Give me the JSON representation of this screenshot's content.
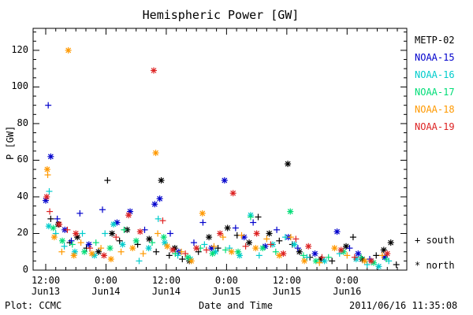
{
  "chart_data": {
    "type": "scatter",
    "title": "Hemispheric Power [GW]",
    "xlabel": "Date and Time",
    "ylabel": "P [GW]",
    "ylim": [
      0,
      132
    ],
    "yticks": [
      0,
      20,
      40,
      60,
      80,
      100,
      120
    ],
    "x_unit": "hours since 2011-06-13 12:00 UT",
    "xlim": [
      0,
      70
    ],
    "xticks": [
      {
        "x": 0,
        "label": "12:00",
        "date": "Jun13"
      },
      {
        "x": 12,
        "label": "0:00",
        "date": "Jun14"
      },
      {
        "x": 24,
        "label": "12:00",
        "date": "Jun14"
      },
      {
        "x": 36,
        "label": "0:00",
        "date": "Jun15"
      },
      {
        "x": 48,
        "label": "12:00",
        "date": "Jun15"
      },
      {
        "x": 60,
        "label": "0:00",
        "date": "Jun16"
      }
    ],
    "legend_position": "right",
    "series": [
      {
        "name": "METP-02",
        "color": "#000000",
        "points": [
          {
            "x": 1.0,
            "y": 28,
            "m": "+"
          },
          {
            "x": 2.5,
            "y": 25,
            "m": "*"
          },
          {
            "x": 4.8,
            "y": 15,
            "m": "+"
          },
          {
            "x": 6.3,
            "y": 18,
            "m": "*"
          },
          {
            "x": 8.1,
            "y": 12,
            "m": "+"
          },
          {
            "x": 10.5,
            "y": 10,
            "m": "*"
          },
          {
            "x": 12.3,
            "y": 49,
            "m": "+"
          },
          {
            "x": 13.2,
            "y": 20,
            "m": "*"
          },
          {
            "x": 14.7,
            "y": 16,
            "m": "+"
          },
          {
            "x": 16.2,
            "y": 22,
            "m": "*"
          },
          {
            "x": 18.3,
            "y": 14,
            "m": "+"
          },
          {
            "x": 20.6,
            "y": 17,
            "m": "*"
          },
          {
            "x": 22.0,
            "y": 10,
            "m": "+"
          },
          {
            "x": 23.0,
            "y": 49,
            "m": "*"
          },
          {
            "x": 24.6,
            "y": 8,
            "m": "+"
          },
          {
            "x": 25.7,
            "y": 12,
            "m": "*"
          },
          {
            "x": 27.2,
            "y": 6,
            "m": "+"
          },
          {
            "x": 28.6,
            "y": 5,
            "m": "*"
          },
          {
            "x": 30.4,
            "y": 10,
            "m": "+"
          },
          {
            "x": 32.5,
            "y": 18,
            "m": "*"
          },
          {
            "x": 34.3,
            "y": 12,
            "m": "+"
          },
          {
            "x": 36.2,
            "y": 23,
            "m": "*"
          },
          {
            "x": 38.1,
            "y": 19,
            "m": "+"
          },
          {
            "x": 40.5,
            "y": 15,
            "m": "*"
          },
          {
            "x": 42.3,
            "y": 29,
            "m": "+"
          },
          {
            "x": 44.5,
            "y": 20,
            "m": "*"
          },
          {
            "x": 46.5,
            "y": 16,
            "m": "+"
          },
          {
            "x": 48.2,
            "y": 58,
            "m": "*"
          },
          {
            "x": 49.1,
            "y": 14,
            "m": "+"
          },
          {
            "x": 50.5,
            "y": 10,
            "m": "*"
          },
          {
            "x": 52.6,
            "y": 7,
            "m": "+"
          },
          {
            "x": 54.8,
            "y": 6,
            "m": "*"
          },
          {
            "x": 57.0,
            "y": 5,
            "m": "+"
          },
          {
            "x": 59.8,
            "y": 13,
            "m": "*"
          },
          {
            "x": 61.2,
            "y": 18,
            "m": "+"
          },
          {
            "x": 63.0,
            "y": 6,
            "m": "*"
          },
          {
            "x": 65.8,
            "y": 8,
            "m": "+"
          },
          {
            "x": 67.3,
            "y": 11,
            "m": "*"
          },
          {
            "x": 68.7,
            "y": 15,
            "m": "*"
          },
          {
            "x": 69.8,
            "y": 3,
            "m": "+"
          }
        ]
      },
      {
        "name": "NOAA-15",
        "color": "#0000cc",
        "points": [
          {
            "x": 0.0,
            "y": 38,
            "m": "*"
          },
          {
            "x": 0.5,
            "y": 90,
            "m": "+"
          },
          {
            "x": 1.0,
            "y": 62,
            "m": "*"
          },
          {
            "x": 2.3,
            "y": 28,
            "m": "+"
          },
          {
            "x": 3.8,
            "y": 22,
            "m": "*"
          },
          {
            "x": 5.1,
            "y": 16,
            "m": "+"
          },
          {
            "x": 6.8,
            "y": 31,
            "m": "+"
          },
          {
            "x": 8.6,
            "y": 14,
            "m": "*"
          },
          {
            "x": 11.3,
            "y": 33,
            "m": "+"
          },
          {
            "x": 14.2,
            "y": 26,
            "m": "*"
          },
          {
            "x": 16.8,
            "y": 32,
            "m": "*"
          },
          {
            "x": 19.7,
            "y": 22,
            "m": "+"
          },
          {
            "x": 21.7,
            "y": 36,
            "m": "*"
          },
          {
            "x": 22.7,
            "y": 39,
            "m": "*"
          },
          {
            "x": 24.8,
            "y": 20,
            "m": "+"
          },
          {
            "x": 26.5,
            "y": 10,
            "m": "*"
          },
          {
            "x": 29.5,
            "y": 15,
            "m": "+"
          },
          {
            "x": 31.3,
            "y": 26,
            "m": "+"
          },
          {
            "x": 33.0,
            "y": 12,
            "m": "*"
          },
          {
            "x": 35.6,
            "y": 49,
            "m": "*"
          },
          {
            "x": 37.8,
            "y": 23,
            "m": "+"
          },
          {
            "x": 39.5,
            "y": 18,
            "m": "*"
          },
          {
            "x": 41.3,
            "y": 26,
            "m": "+"
          },
          {
            "x": 43.7,
            "y": 13,
            "m": "*"
          },
          {
            "x": 46.0,
            "y": 22,
            "m": "+"
          },
          {
            "x": 48.3,
            "y": 18,
            "m": "*"
          },
          {
            "x": 50.2,
            "y": 12,
            "m": "+"
          },
          {
            "x": 53.6,
            "y": 9,
            "m": "*"
          },
          {
            "x": 58.0,
            "y": 21,
            "m": "*"
          },
          {
            "x": 60.5,
            "y": 12,
            "m": "+"
          },
          {
            "x": 62.2,
            "y": 9,
            "m": "*"
          },
          {
            "x": 64.5,
            "y": 6,
            "m": "+"
          },
          {
            "x": 67.5,
            "y": 7,
            "m": "*"
          }
        ]
      },
      {
        "name": "NOAA-16",
        "color": "#00cccc",
        "points": [
          {
            "x": 0.6,
            "y": 24,
            "m": "*"
          },
          {
            "x": 0.7,
            "y": 43,
            "m": "+"
          },
          {
            "x": 2.0,
            "y": 20,
            "m": "+"
          },
          {
            "x": 3.7,
            "y": 13,
            "m": "+"
          },
          {
            "x": 5.8,
            "y": 10,
            "m": "*"
          },
          {
            "x": 7.3,
            "y": 20,
            "m": "+"
          },
          {
            "x": 9.7,
            "y": 8,
            "m": "*"
          },
          {
            "x": 11.8,
            "y": 20,
            "m": "+"
          },
          {
            "x": 13.5,
            "y": 25,
            "m": "*"
          },
          {
            "x": 15.3,
            "y": 14,
            "m": "*"
          },
          {
            "x": 18.6,
            "y": 5,
            "m": "+"
          },
          {
            "x": 20.5,
            "y": 12,
            "m": "*"
          },
          {
            "x": 22.4,
            "y": 28,
            "m": "+"
          },
          {
            "x": 23.7,
            "y": 15,
            "m": "*"
          },
          {
            "x": 26.3,
            "y": 8,
            "m": "+"
          },
          {
            "x": 28.8,
            "y": 6,
            "m": "*"
          },
          {
            "x": 31.6,
            "y": 14,
            "m": "+"
          },
          {
            "x": 33.8,
            "y": 10,
            "m": "*"
          },
          {
            "x": 36.6,
            "y": 12,
            "m": "+"
          },
          {
            "x": 38.6,
            "y": 8,
            "m": "*"
          },
          {
            "x": 40.8,
            "y": 30,
            "m": "*"
          },
          {
            "x": 42.5,
            "y": 8,
            "m": "+"
          },
          {
            "x": 45.2,
            "y": 14,
            "m": "*"
          },
          {
            "x": 47.7,
            "y": 18,
            "m": "+"
          },
          {
            "x": 49.5,
            "y": 14,
            "m": "*"
          },
          {
            "x": 52.0,
            "y": 7,
            "m": "+"
          },
          {
            "x": 55.5,
            "y": 5,
            "m": "*"
          },
          {
            "x": 58.5,
            "y": 9,
            "m": "+"
          },
          {
            "x": 61.8,
            "y": 6,
            "m": "*"
          },
          {
            "x": 64.0,
            "y": 3,
            "m": "+"
          },
          {
            "x": 66.3,
            "y": 2,
            "m": "*"
          },
          {
            "x": 68.3,
            "y": 5,
            "m": "+"
          }
        ]
      },
      {
        "name": "NOAA-17",
        "color": "#00dd77",
        "points": [
          {
            "x": 1.5,
            "y": 23,
            "m": "*"
          },
          {
            "x": 3.3,
            "y": 16,
            "m": "*"
          },
          {
            "x": 5.3,
            "y": 14,
            "m": "+"
          },
          {
            "x": 7.7,
            "y": 10,
            "m": "*"
          },
          {
            "x": 10.0,
            "y": 15,
            "m": "+"
          },
          {
            "x": 12.8,
            "y": 12,
            "m": "*"
          },
          {
            "x": 15.6,
            "y": 22,
            "m": "+"
          },
          {
            "x": 18.0,
            "y": 16,
            "m": "*"
          },
          {
            "x": 21.2,
            "y": 15,
            "m": "+"
          },
          {
            "x": 23.5,
            "y": 18,
            "m": "*"
          },
          {
            "x": 25.8,
            "y": 9,
            "m": "+"
          },
          {
            "x": 28.3,
            "y": 7,
            "m": "*"
          },
          {
            "x": 30.8,
            "y": 12,
            "m": "+"
          },
          {
            "x": 33.2,
            "y": 9,
            "m": "*"
          },
          {
            "x": 35.8,
            "y": 11,
            "m": "+"
          },
          {
            "x": 38.3,
            "y": 10,
            "m": "*"
          },
          {
            "x": 40.8,
            "y": 29,
            "m": "+"
          },
          {
            "x": 43.2,
            "y": 12,
            "m": "*"
          },
          {
            "x": 45.8,
            "y": 10,
            "m": "+"
          },
          {
            "x": 48.7,
            "y": 32,
            "m": "*"
          },
          {
            "x": 51.3,
            "y": 8,
            "m": "+"
          },
          {
            "x": 53.8,
            "y": 5,
            "m": "*"
          },
          {
            "x": 56.3,
            "y": 7,
            "m": "+"
          },
          {
            "x": 59.3,
            "y": 10,
            "m": "*"
          },
          {
            "x": 62.8,
            "y": 7,
            "m": "+"
          },
          {
            "x": 65.3,
            "y": 4,
            "m": "*"
          },
          {
            "x": 67.8,
            "y": 6,
            "m": "+"
          }
        ]
      },
      {
        "name": "NOAA-18",
        "color": "#ff9900",
        "points": [
          {
            "x": 0.3,
            "y": 55,
            "m": "*"
          },
          {
            "x": 0.4,
            "y": 52,
            "m": "+"
          },
          {
            "x": 1.7,
            "y": 18,
            "m": "*"
          },
          {
            "x": 3.2,
            "y": 10,
            "m": "+"
          },
          {
            "x": 4.5,
            "y": 120,
            "m": "*"
          },
          {
            "x": 5.6,
            "y": 8,
            "m": "*"
          },
          {
            "x": 7.0,
            "y": 15,
            "m": "+"
          },
          {
            "x": 9.2,
            "y": 9,
            "m": "*"
          },
          {
            "x": 11.0,
            "y": 12,
            "m": "+"
          },
          {
            "x": 13.0,
            "y": 6,
            "m": "*"
          },
          {
            "x": 15.0,
            "y": 10,
            "m": "+"
          },
          {
            "x": 17.3,
            "y": 12,
            "m": "*"
          },
          {
            "x": 19.4,
            "y": 9,
            "m": "+"
          },
          {
            "x": 21.9,
            "y": 64,
            "m": "*"
          },
          {
            "x": 22.3,
            "y": 20,
            "m": "+"
          },
          {
            "x": 24.2,
            "y": 13,
            "m": "*"
          },
          {
            "x": 27.0,
            "y": 10,
            "m": "+"
          },
          {
            "x": 29.0,
            "y": 5,
            "m": "*"
          },
          {
            "x": 31.2,
            "y": 31,
            "m": "*"
          },
          {
            "x": 33.5,
            "y": 13,
            "m": "+"
          },
          {
            "x": 35.3,
            "y": 18,
            "m": "+"
          },
          {
            "x": 37.0,
            "y": 10,
            "m": "*"
          },
          {
            "x": 39.0,
            "y": 19,
            "m": "+"
          },
          {
            "x": 41.8,
            "y": 12,
            "m": "*"
          },
          {
            "x": 44.0,
            "y": 17,
            "m": "+"
          },
          {
            "x": 46.5,
            "y": 8,
            "m": "*"
          },
          {
            "x": 48.8,
            "y": 18,
            "m": "+"
          },
          {
            "x": 51.5,
            "y": 5,
            "m": "*"
          },
          {
            "x": 54.5,
            "y": 4,
            "m": "+"
          },
          {
            "x": 57.5,
            "y": 12,
            "m": "*"
          },
          {
            "x": 60.0,
            "y": 8,
            "m": "+"
          },
          {
            "x": 63.5,
            "y": 5,
            "m": "*"
          },
          {
            "x": 67.0,
            "y": 8,
            "m": "+"
          }
        ]
      },
      {
        "name": "NOAA-19",
        "color": "#dd2222",
        "points": [
          {
            "x": 0.2,
            "y": 40,
            "m": "*"
          },
          {
            "x": 0.8,
            "y": 32,
            "m": "+"
          },
          {
            "x": 2.7,
            "y": 25,
            "m": "*"
          },
          {
            "x": 4.3,
            "y": 22,
            "m": "+"
          },
          {
            "x": 6.0,
            "y": 20,
            "m": "*"
          },
          {
            "x": 8.8,
            "y": 12,
            "m": "+"
          },
          {
            "x": 11.6,
            "y": 8,
            "m": "*"
          },
          {
            "x": 14.0,
            "y": 18,
            "m": "+"
          },
          {
            "x": 16.5,
            "y": 30,
            "m": "*"
          },
          {
            "x": 18.8,
            "y": 21,
            "m": "*"
          },
          {
            "x": 21.5,
            "y": 109,
            "m": "*"
          },
          {
            "x": 23.3,
            "y": 27,
            "m": "+"
          },
          {
            "x": 25.3,
            "y": 11,
            "m": "*"
          },
          {
            "x": 27.8,
            "y": 9,
            "m": "+"
          },
          {
            "x": 30.0,
            "y": 12,
            "m": "*"
          },
          {
            "x": 32.0,
            "y": 11,
            "m": "+"
          },
          {
            "x": 34.7,
            "y": 20,
            "m": "*"
          },
          {
            "x": 37.3,
            "y": 42,
            "m": "*"
          },
          {
            "x": 39.8,
            "y": 13,
            "m": "+"
          },
          {
            "x": 42.0,
            "y": 20,
            "m": "*"
          },
          {
            "x": 44.8,
            "y": 14,
            "m": "+"
          },
          {
            "x": 47.3,
            "y": 9,
            "m": "*"
          },
          {
            "x": 49.8,
            "y": 17,
            "m": "+"
          },
          {
            "x": 52.3,
            "y": 13,
            "m": "*"
          },
          {
            "x": 55.0,
            "y": 7,
            "m": "+"
          },
          {
            "x": 58.8,
            "y": 11,
            "m": "*"
          },
          {
            "x": 61.5,
            "y": 7,
            "m": "+"
          },
          {
            "x": 64.8,
            "y": 5,
            "m": "*"
          },
          {
            "x": 68.0,
            "y": 9,
            "m": "*"
          }
        ]
      }
    ],
    "marker_legend": [
      {
        "symbol": "+",
        "label": "south"
      },
      {
        "symbol": "*",
        "label": "north"
      }
    ]
  },
  "footer": {
    "plot_credit": "Plot: CCMC",
    "timestamp": "2011/06/16 11:35:08"
  }
}
